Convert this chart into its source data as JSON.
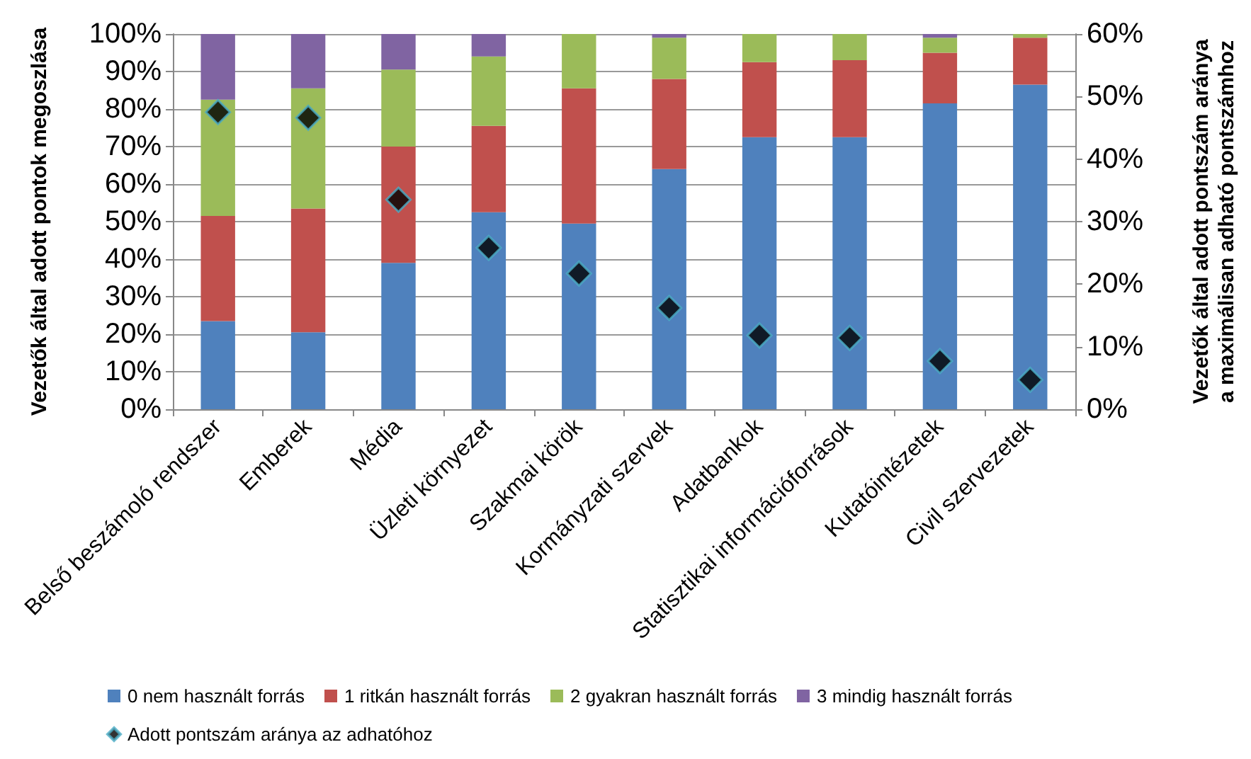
{
  "chart_data": {
    "type": "bar",
    "stacked": true,
    "ylabel": "Vezetők által adott pontok megoszlása",
    "y2label": "Vezetők által adott pontszám aránya\na maximálisan adható pontszámhoz",
    "categories": [
      "Belső beszámoló rendszer",
      "Emberek",
      "Média",
      "Üzleti környezet",
      "Szakmai körök",
      "Kormányzati szervek",
      "Adatbankok",
      "Statisztikai információforrások",
      "Kutatóintézetek",
      "Civil szervezetek"
    ],
    "series": [
      {
        "name": "0 nem használt forrás",
        "color": "#4f81bd",
        "values": [
          23.5,
          20.5,
          39,
          52.5,
          49.5,
          64,
          72.5,
          72.5,
          81.5,
          86.5
        ]
      },
      {
        "name": "1 ritkán használt forrás",
        "color": "#c0504d",
        "values": [
          28,
          33,
          31,
          23,
          36,
          24,
          20,
          20.5,
          13.5,
          12.5
        ]
      },
      {
        "name": "2 gyakran használt forrás",
        "color": "#9bbb59",
        "values": [
          31,
          32,
          20.5,
          18.5,
          14.5,
          11,
          7.5,
          7,
          4,
          1
        ]
      },
      {
        "name": "3 mindig használt forrás",
        "color": "#8064a2",
        "values": [
          17.5,
          14.5,
          9.5,
          6,
          0,
          1,
          0,
          0,
          1,
          0
        ]
      },
      {
        "name": "Adott pontszám aránya az adhatóhoz",
        "type": "scatter",
        "axis": "y2",
        "marker": "diamond",
        "color": "#000000",
        "values": [
          47.5,
          46.6,
          33.5,
          25.8,
          21.7,
          16.2,
          11.8,
          11.4,
          7.7,
          4.7
        ]
      }
    ],
    "ylim": [
      0,
      100
    ],
    "yticks": [
      {
        "value": 0,
        "label": "0%"
      },
      {
        "value": 10,
        "label": "10%"
      },
      {
        "value": 20,
        "label": "20%"
      },
      {
        "value": 30,
        "label": "30%"
      },
      {
        "value": 40,
        "label": "40%"
      },
      {
        "value": 50,
        "label": "50%"
      },
      {
        "value": 60,
        "label": "60%"
      },
      {
        "value": 70,
        "label": "70%"
      },
      {
        "value": 80,
        "label": "80%"
      },
      {
        "value": 90,
        "label": "90%"
      },
      {
        "value": 100,
        "label": "100%"
      }
    ],
    "y2lim": [
      0,
      60
    ],
    "y2ticks": [
      {
        "value": 0,
        "label": "0%"
      },
      {
        "value": 10,
        "label": "10%"
      },
      {
        "value": 20,
        "label": "20%"
      },
      {
        "value": 30,
        "label": "30%"
      },
      {
        "value": 40,
        "label": "40%"
      },
      {
        "value": 50,
        "label": "50%"
      },
      {
        "value": 60,
        "label": "60%"
      }
    ],
    "grid": "y",
    "legend": "bottom"
  }
}
